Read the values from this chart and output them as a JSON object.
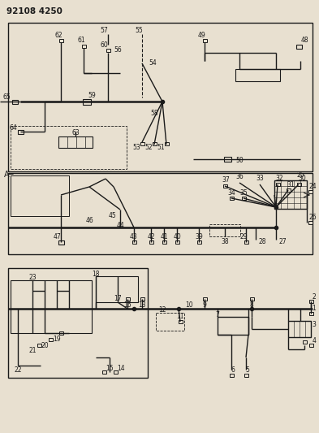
{
  "title": "92108 4250",
  "bg_color": "#e8e0d0",
  "line_color": "#1a1a1a",
  "fig_width": 3.93,
  "fig_height": 5.33,
  "dpi": 100
}
